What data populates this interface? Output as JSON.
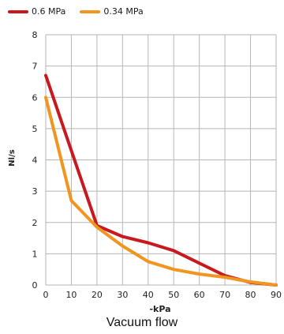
{
  "chart_data": {
    "type": "line",
    "title": "",
    "xlabel": "-kPa",
    "ylabel": "Nl/s",
    "xlim": [
      0,
      90
    ],
    "ylim": [
      0,
      8
    ],
    "x_ticks": [
      0,
      10,
      20,
      30,
      40,
      50,
      60,
      70,
      80,
      90
    ],
    "y_ticks": [
      0,
      1,
      2,
      3,
      4,
      5,
      6,
      7,
      8
    ],
    "grid": true,
    "legend_placement": "top-left",
    "series": [
      {
        "name": "0.6 MPa",
        "color": "#c8191e",
        "points": [
          [
            0,
            6.7
          ],
          [
            10,
            4.3
          ],
          [
            20,
            1.9
          ],
          [
            30,
            1.55
          ],
          [
            40,
            1.35
          ],
          [
            50,
            1.1
          ],
          [
            60,
            0.7
          ],
          [
            70,
            0.3
          ],
          [
            80,
            0.08
          ],
          [
            90,
            0.0
          ]
        ]
      },
      {
        "name": "0.34 MPa",
        "color": "#f29520",
        "points": [
          [
            0,
            6.0
          ],
          [
            10,
            2.7
          ],
          [
            20,
            1.85
          ],
          [
            30,
            1.25
          ],
          [
            40,
            0.75
          ],
          [
            50,
            0.5
          ],
          [
            60,
            0.35
          ],
          [
            70,
            0.25
          ],
          [
            80,
            0.1
          ],
          [
            90,
            0.0
          ]
        ]
      }
    ]
  },
  "caption": "Vacuum flow"
}
